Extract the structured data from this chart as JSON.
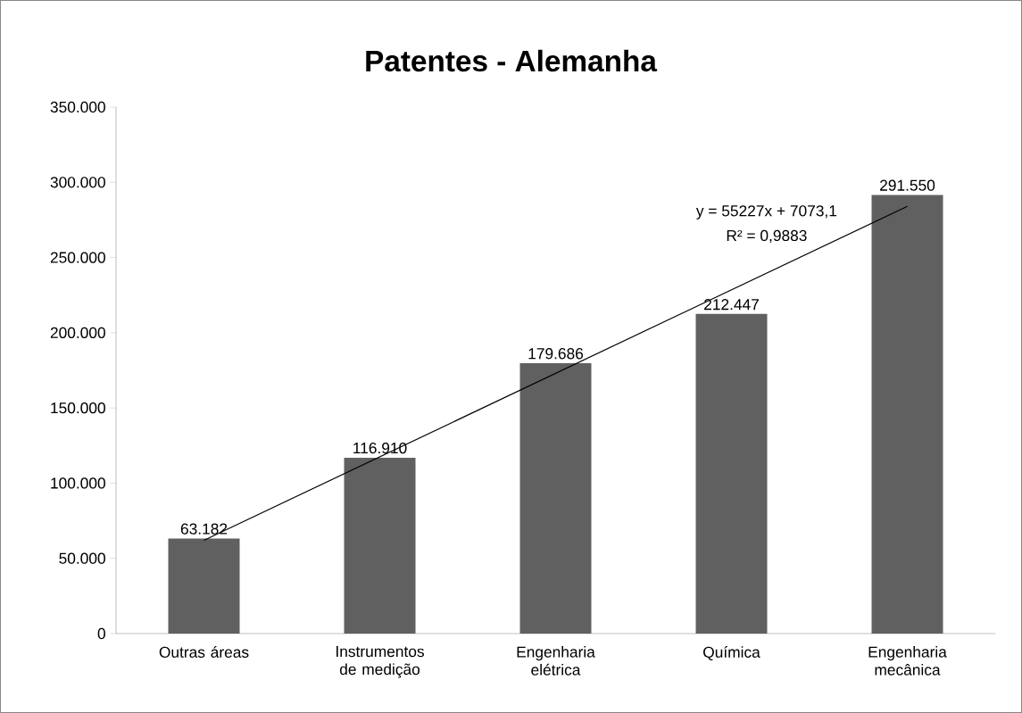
{
  "chart_data": {
    "type": "bar",
    "title": "Patentes - Alemanha",
    "categories": [
      "Outras áreas",
      "Instrumentos de medição",
      "Engenharia elétrica",
      "Química",
      "Engenharia mecânica"
    ],
    "series": [
      {
        "color": "#606060",
        "values": [
          63182,
          116910,
          179686,
          212447,
          291550
        ],
        "value_labels": [
          "63.182",
          "116.910",
          "179.686",
          "212.447",
          "291.550"
        ]
      },
      {
        "type": "line",
        "color": "#000000",
        "values": [
          62000,
          null,
          null,
          null,
          284000
        ]
      }
    ],
    "ylim": [
      0,
      350000
    ],
    "yticks": [
      0,
      {
        "value": 50000,
        "label": "50.000"
      },
      {
        "value": 100000,
        "label": "100.000"
      },
      {
        "value": 150000,
        "label": "150.000"
      },
      {
        "value": 200000,
        "label": "200.000"
      },
      {
        "value": 250000,
        "label": "250.000"
      },
      {
        "value": 300000,
        "label": "300.000"
      },
      {
        "value": 350000,
        "label": "350.000"
      }
    ],
    "annotations": [
      "y = 55227x + 7073,1",
      "R² = 0,9883"
    ]
  }
}
